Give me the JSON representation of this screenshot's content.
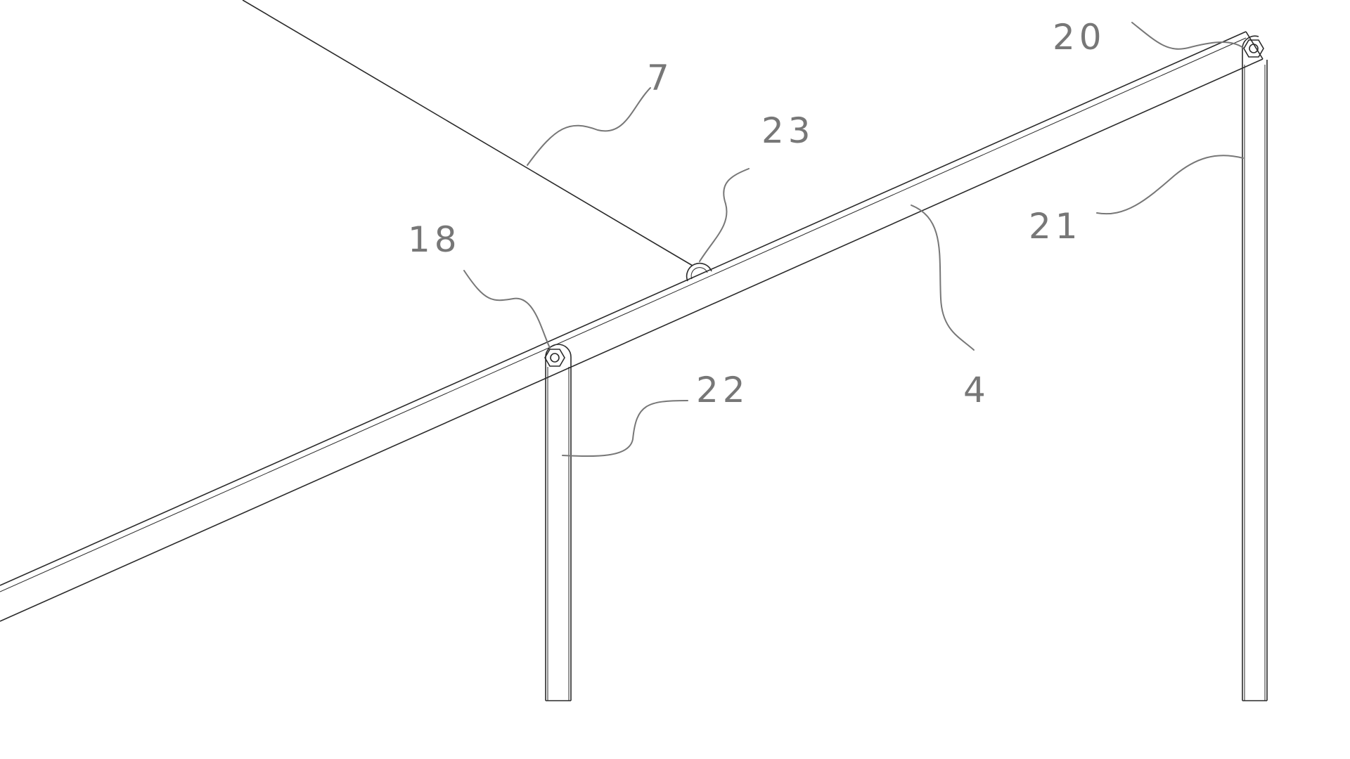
{
  "drawing": {
    "colors": {
      "line": "#2a2a2a",
      "leader": "#777777",
      "label": "#777777",
      "background": "#ffffff"
    },
    "labels": {
      "cable": "7",
      "pulley": "23",
      "left_pivot": "18",
      "right_pivot": "20",
      "right_post": "21",
      "left_post": "22",
      "beam": "4"
    },
    "icons": {
      "pivot": "hex-nut-bolt-icon"
    }
  }
}
